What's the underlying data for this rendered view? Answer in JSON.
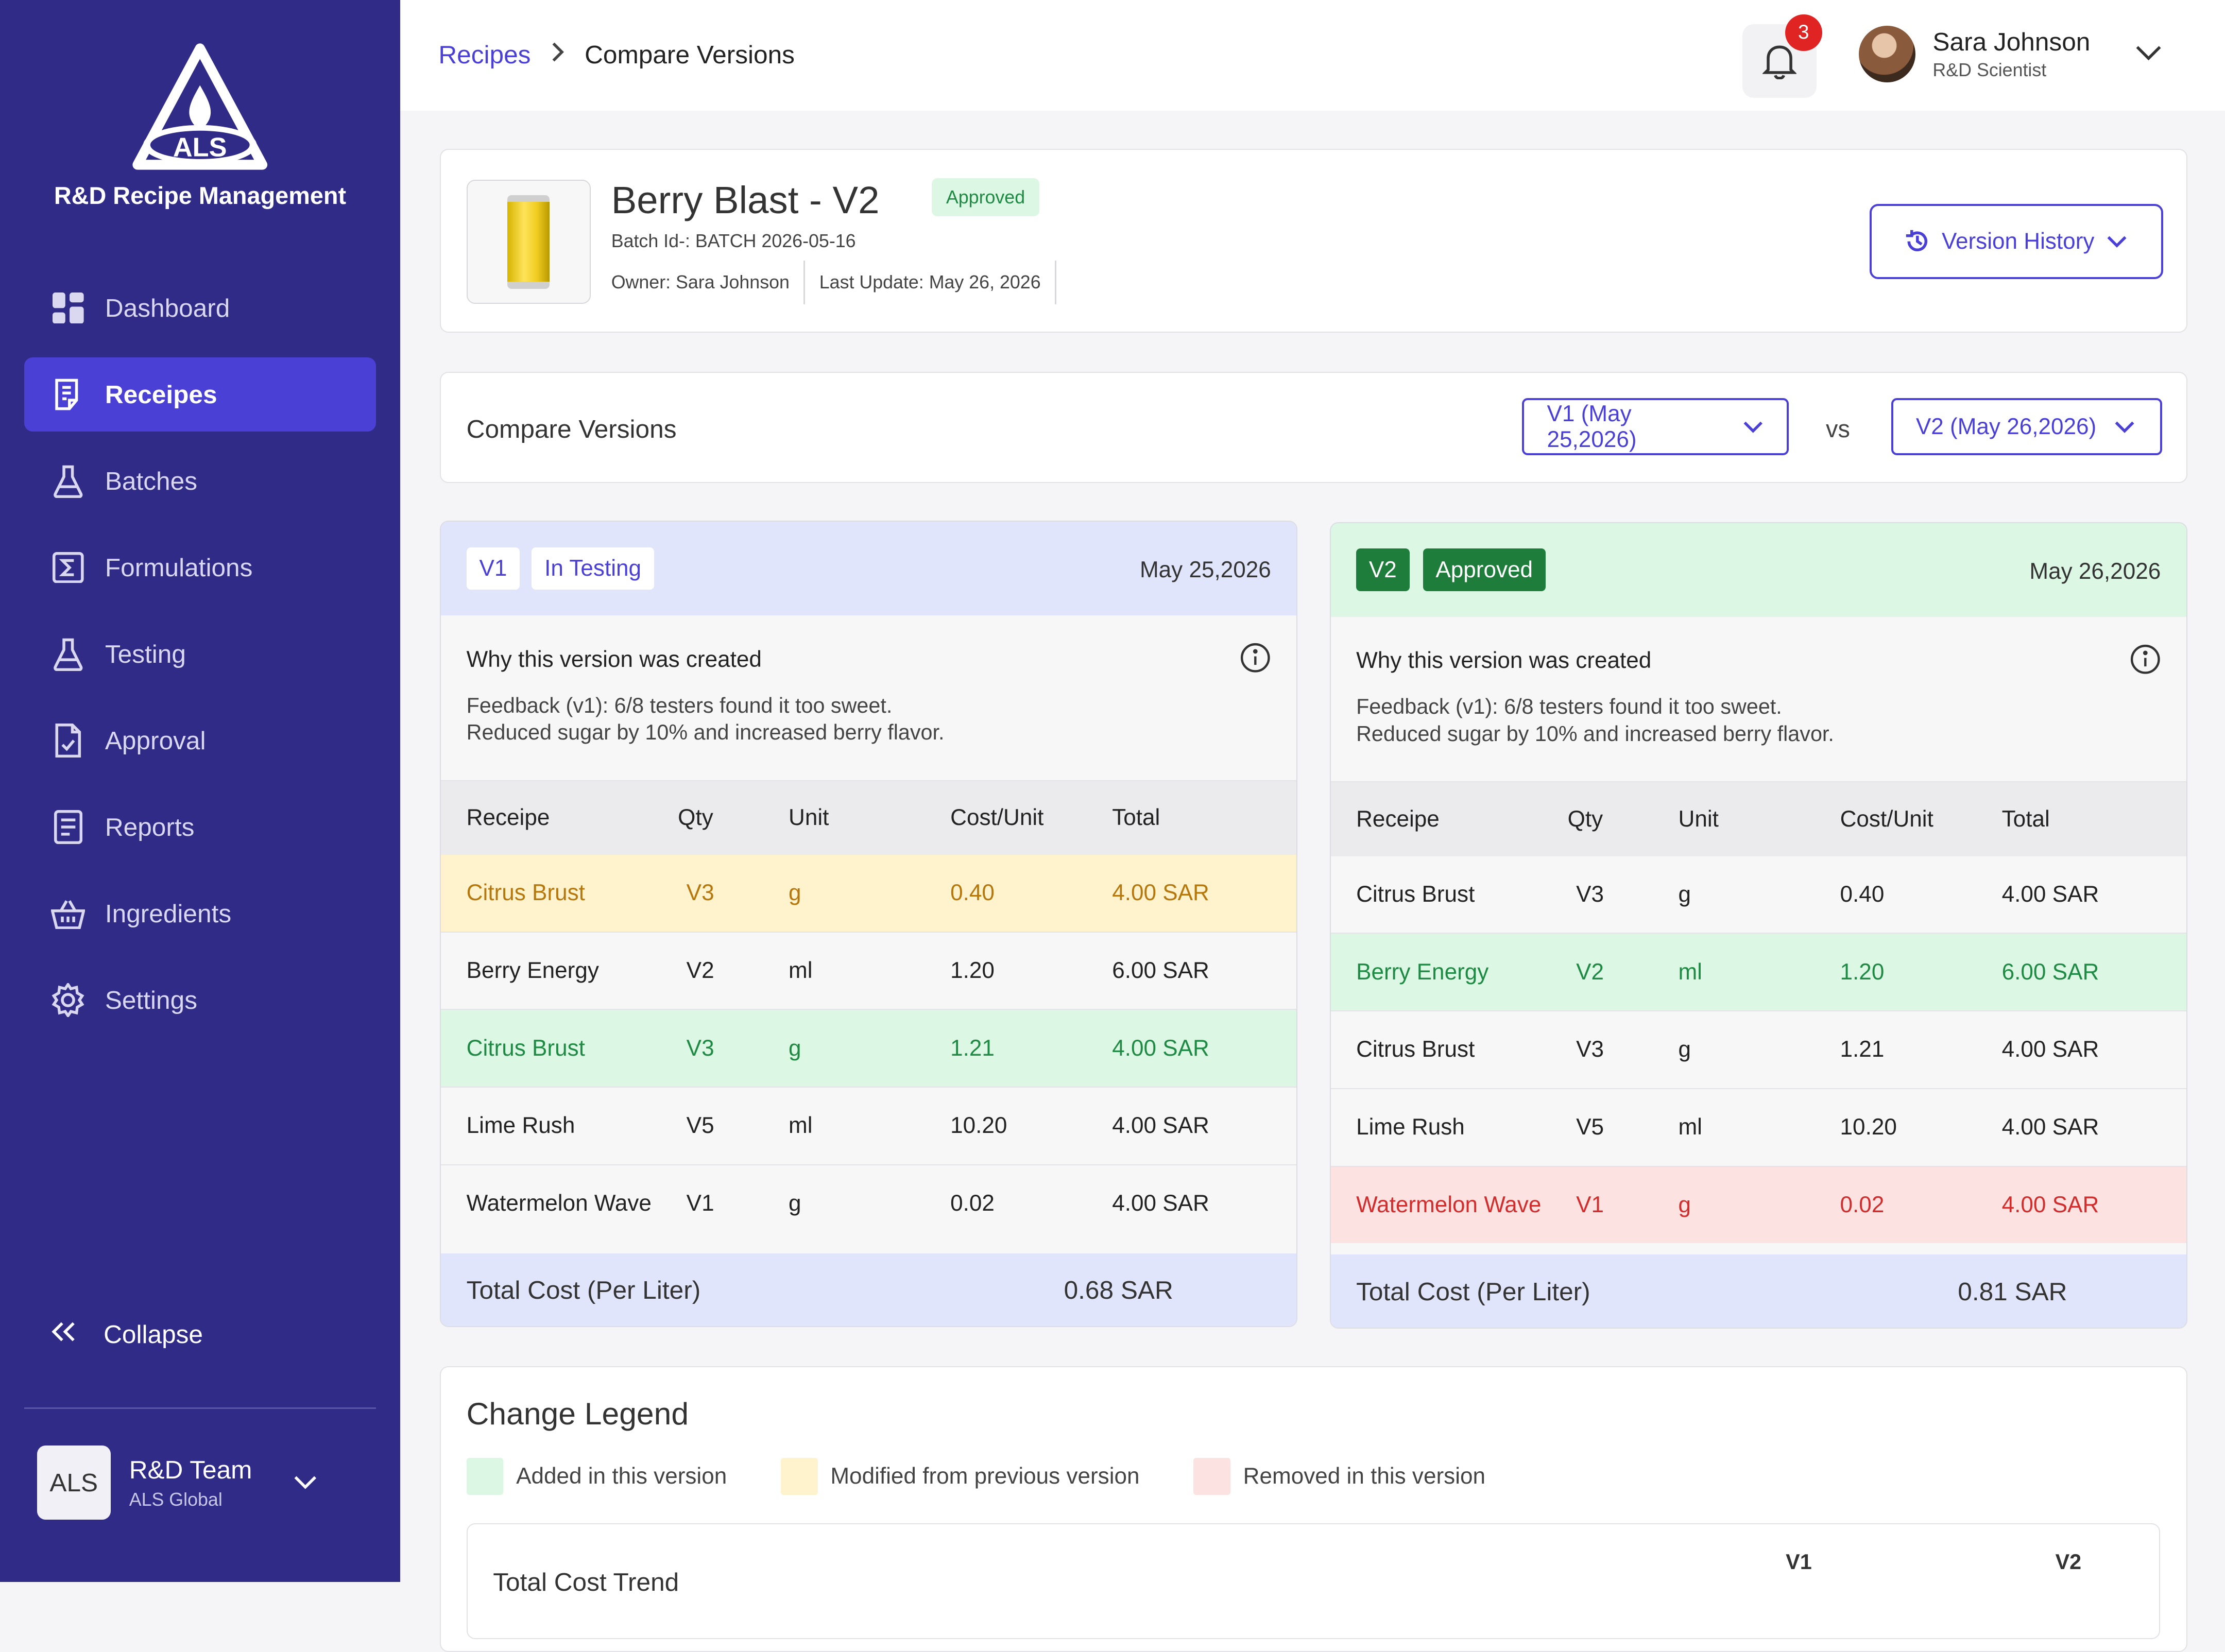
{
  "sidebar": {
    "logo_text": "ALS",
    "title": "R&D Recipe Management",
    "items": [
      {
        "label": "Dashboard",
        "icon": "dashboard-icon"
      },
      {
        "label": "Receipes",
        "icon": "recipe-icon"
      },
      {
        "label": "Batches",
        "icon": "flask-icon"
      },
      {
        "label": "Formulations",
        "icon": "sigma-icon"
      },
      {
        "label": "Testing",
        "icon": "flask-icon"
      },
      {
        "label": "Approval",
        "icon": "document-check-icon"
      },
      {
        "label": "Reports",
        "icon": "report-icon"
      },
      {
        "label": "Ingredients",
        "icon": "basket-icon"
      },
      {
        "label": "Settings",
        "icon": "gear-icon"
      }
    ],
    "active_index": 1,
    "collapse_label": "Collapse",
    "team": {
      "avatar": "ALS",
      "name": "R&D Team",
      "org": "ALS Global"
    }
  },
  "header": {
    "breadcrumb": {
      "root": "Recipes",
      "current": "Compare Versions"
    },
    "notifications": "3",
    "user": {
      "name": "Sara Johnson",
      "role": "R&D Scientist"
    }
  },
  "product": {
    "title": "Berry Blast - V2",
    "status": "Approved",
    "batch": "Batch Id-: BATCH 2026-05-16",
    "owner": "Owner: Sara Johnson",
    "last_update": "Last Update: May 26, 2026",
    "version_history_label": "Version History"
  },
  "compare": {
    "title": "Compare Versions",
    "left_select": "V1 (May 25,2026)",
    "vs": "vs",
    "right_select": "V2 (May 26,2026)"
  },
  "v1": {
    "tag": "V1",
    "status": "In Testing",
    "date": "May 25,2026",
    "why_title": "Why this version was created",
    "why_line1": "Feedback (v1): 6/8 testers found it too sweet.",
    "why_line2": "Reduced sugar by 10% and increased berry flavor.",
    "headers": [
      "Receipe",
      "Qty",
      "Unit",
      "Cost/Unit",
      "Total"
    ],
    "rows": [
      [
        "Citrus Brust",
        "V3",
        "g",
        "0.40",
        "4.00 SAR"
      ],
      [
        "Berry Energy",
        "V2",
        "ml",
        "1.20",
        "6.00 SAR"
      ],
      [
        "Citrus Brust",
        "V3",
        "g",
        "1.21",
        "4.00 SAR"
      ],
      [
        "Lime Rush",
        "V5",
        "ml",
        "10.20",
        "4.00 SAR"
      ],
      [
        "Watermelon Wave",
        "V1",
        "g",
        "0.02",
        "4.00 SAR"
      ]
    ],
    "total_label": "Total Cost (Per Liter)",
    "total_value": "0.68 SAR"
  },
  "v2": {
    "tag": "V2",
    "status": "Approved",
    "date": "May 26,2026",
    "why_title": "Why this version was created",
    "why_line1": "Feedback (v1): 6/8 testers found it too sweet.",
    "why_line2": "Reduced sugar by 10% and increased berry flavor.",
    "headers": [
      "Receipe",
      "Qty",
      "Unit",
      "Cost/Unit",
      "Total"
    ],
    "rows": [
      [
        "Citrus Brust",
        "V3",
        "g",
        "0.40",
        "4.00 SAR"
      ],
      [
        "Berry Energy",
        "V2",
        "ml",
        "1.20",
        "6.00 SAR"
      ],
      [
        "Citrus Brust",
        "V3",
        "g",
        "1.21",
        "4.00 SAR"
      ],
      [
        "Lime Rush",
        "V5",
        "ml",
        "10.20",
        "4.00 SAR"
      ],
      [
        "Watermelon Wave",
        "V1",
        "g",
        "0.02",
        "4.00 SAR"
      ]
    ],
    "total_label": "Total Cost (Per Liter)",
    "total_value": "0.81 SAR"
  },
  "legend": {
    "title": "Change Legend",
    "added": "Added in this version",
    "modified": "Modified from previous version",
    "removed": "Removed in this version",
    "trend_title": "Total Cost Trend",
    "trend_v1": "V1",
    "trend_v2": "V2"
  },
  "colors": {
    "sidebar": "#2f2b86",
    "accent": "#4a40d6",
    "added": "#dcf7e3",
    "modified": "#fef3cc",
    "removed": "#fde2e2"
  }
}
